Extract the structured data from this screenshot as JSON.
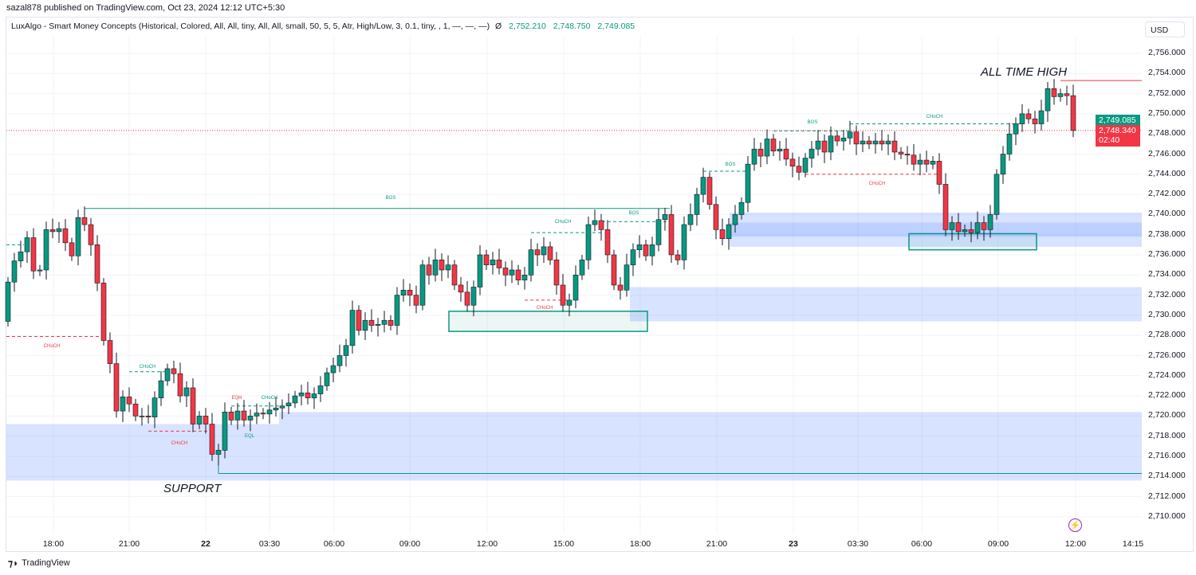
{
  "header": {
    "published": "sazal878 published on TradingView.com, Oct 23, 2024 12:12 UTC+5:30"
  },
  "legend": {
    "indicator": "LuxAlgo - Smart Money Concepts (Historical, Colored, All, All, tiny, All, All, small, 50, 5, 5, Atr, High/Low, 3, 0.1, tiny, , 1, —, —, —)",
    "symbol": "Ø",
    "values": [
      "2,752.210",
      "2,748.750",
      "2,749.085"
    ]
  },
  "axis": {
    "currency": "USD",
    "price_ticks": [
      "2,756.000",
      "2,754.000",
      "2,752.000",
      "2,750.000",
      "2,748.000",
      "2,746.000",
      "2,744.000",
      "2,742.000",
      "2,740.000",
      "2,738.000",
      "2,736.000",
      "2,734.000",
      "2,732.000",
      "2,730.000",
      "2,728.000",
      "2,726.000",
      "2,724.000",
      "2,722.000",
      "2,720.000",
      "2,718.000",
      "2,716.000",
      "2,714.000",
      "2,712.000",
      "2,710.000"
    ],
    "time_ticks": [
      "18:00",
      "21:00",
      "22",
      "03:30",
      "06:00",
      "09:00",
      "12:00",
      "15:00",
      "18:00",
      "21:00",
      "23",
      "03:30",
      "06:00",
      "09:00",
      "12:00",
      "14:15"
    ]
  },
  "price_labels": {
    "indicator_price": "2,749.085",
    "last_price": "2,748.340",
    "countdown": "02:40",
    "indicator_color": "#089981",
    "last_color": "#f23645"
  },
  "annotations": {
    "ath": "ALL TIME HIGH",
    "support": "SUPPORT",
    "bos": "BOS",
    "choch": "CHoCH",
    "eqh": "EQH",
    "eql": "EQL"
  },
  "footer": {
    "brand": "TradingView"
  },
  "chart_data": {
    "type": "candlestick",
    "title": "",
    "interval_minutes": 15,
    "ylim": [
      2709,
      2757.5
    ],
    "up_color": "#089981",
    "down_color": "#f23645",
    "first_open": 2729.4,
    "close": [
      2733.3,
      2735.4,
      2736.3,
      2737.7,
      2734.4,
      2734.5,
      2738.5,
      2738.3,
      2738.6,
      2737.2,
      2735.9,
      2739.7,
      2739.0,
      2737.0,
      2733.2,
      2727.5,
      2725.2,
      2720.5,
      2721.9,
      2721.2,
      2720.0,
      2720.0,
      2719.9,
      2721.8,
      2723.5,
      2724.7,
      2724.2,
      2722.0,
      2722.8,
      2719.2,
      2720.0,
      2719.2,
      2716.2,
      2716.6,
      2720.4,
      2719.6,
      2720.5,
      2719.6,
      2720.0,
      2720.3,
      2720.2,
      2720.6,
      2720.8,
      2721.0,
      2721.3,
      2722.0,
      2722.3,
      2721.8,
      2722.2,
      2723.0,
      2724.3,
      2725.0,
      2726.0,
      2727.0,
      2730.5,
      2728.5,
      2729.5,
      2729.0,
      2729.1,
      2729.5,
      2729.0,
      2732.0,
      2732.5,
      2732.0,
      2731.0,
      2735.0,
      2734.0,
      2735.5,
      2734.5,
      2735.0,
      2733.0,
      2732.3,
      2731.0,
      2732.8,
      2736.0,
      2735.0,
      2735.5,
      2734.7,
      2734.0,
      2734.5,
      2733.5,
      2734.0,
      2736.5,
      2736.0,
      2736.8,
      2735.5,
      2733.0,
      2731.0,
      2731.5,
      2734.0,
      2735.5,
      2739.0,
      2739.4,
      2738.5,
      2736.0,
      2733.0,
      2732.5,
      2735.0,
      2736.5,
      2737.0,
      2735.9,
      2737.0,
      2739.5,
      2740.0,
      2736.0,
      2735.5,
      2739.0,
      2740.0,
      2742.0,
      2743.7,
      2741.0,
      2738.5,
      2737.6,
      2739.0,
      2740.0,
      2741.2,
      2745.0,
      2746.5,
      2745.8,
      2747.5,
      2746.3,
      2746.5,
      2745.5,
      2744.8,
      2744.2,
      2745.6,
      2746.5,
      2747.3,
      2746.2,
      2747.8,
      2747.3,
      2747.6,
      2748.2,
      2747.0,
      2747.3,
      2747.0,
      2747.3,
      2747.0,
      2747.3,
      2746.2,
      2746.0,
      2745.9,
      2745.0,
      2745.4,
      2745.0,
      2745.3,
      2743.0,
      2738.5,
      2739.2,
      2738.3,
      2738.5,
      2738.2,
      2739.2,
      2738.5,
      2740.0,
      2744.0,
      2746.0,
      2748.0,
      2749.0,
      2750.0,
      2749.5,
      2749.0,
      2750.3,
      2752.5,
      2751.7,
      2752.0,
      2751.8,
      2748.34
    ],
    "levels": {
      "all_time_high": 2753.3,
      "support_line": 2714.3,
      "bos_line": 2740.6,
      "last_price": 2748.34
    },
    "zones": [
      {
        "type": "demand",
        "from": 2713.6,
        "to": 2719.2
      },
      {
        "type": "demand",
        "from": 2719.2,
        "to": 2720.4
      },
      {
        "type": "demand",
        "from": 2729.4,
        "to": 2732.8
      },
      {
        "type": "demand",
        "from": 2736.8,
        "to": 2740.2
      },
      {
        "type": "order-block",
        "from": 2728.4,
        "to": 2730.4
      },
      {
        "type": "order-block",
        "from": 2736.5,
        "to": 2738.1
      }
    ]
  }
}
